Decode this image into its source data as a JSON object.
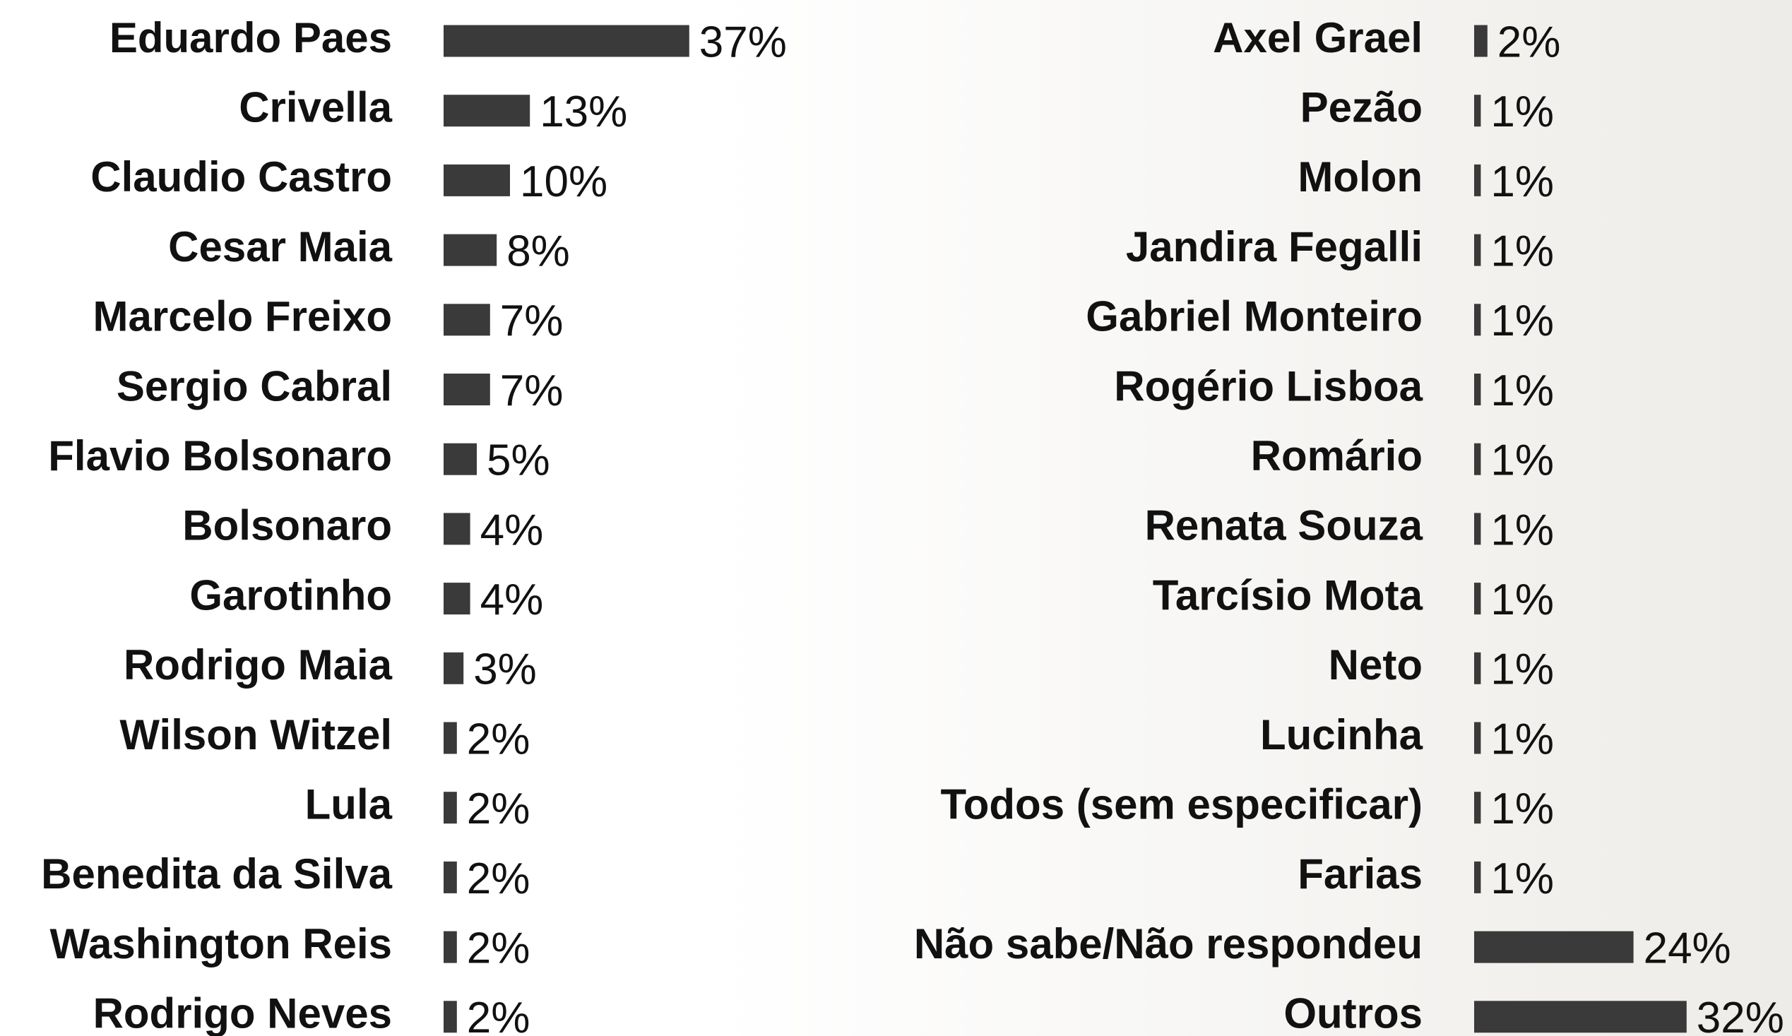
{
  "chart_data": [
    {
      "type": "bar",
      "orientation": "horizontal",
      "color": "#3a3a3a",
      "categories": [
        "Eduardo Paes",
        "Crivella",
        "Claudio Castro",
        "Cesar Maia",
        "Marcelo Freixo",
        "Sergio Cabral",
        "Flavio Bolsonaro",
        "Bolsonaro",
        "Garotinho",
        "Rodrigo Maia",
        "Wilson Witzel",
        "Lula",
        "Benedita da Silva",
        "Washington Reis",
        "Rodrigo Neves"
      ],
      "values": [
        37,
        13,
        10,
        8,
        7,
        7,
        5,
        4,
        4,
        3,
        2,
        2,
        2,
        2,
        2
      ],
      "value_labels": [
        "37%",
        "13%",
        "10%",
        "8%",
        "7%",
        "7%",
        "5%",
        "4%",
        "4%",
        "3%",
        "2%",
        "2%",
        "2%",
        "2%",
        "2%"
      ]
    },
    {
      "type": "bar",
      "orientation": "horizontal",
      "color": "#3a3a3a",
      "categories": [
        "Axel Grael",
        "Pezão",
        "Molon",
        "Jandira Fegalli",
        "Gabriel Monteiro",
        "Rogério Lisboa",
        "Romário",
        "Renata Souza",
        "Tarcísio Mota",
        "Neto",
        "Lucinha",
        "Todos (sem especificar)",
        "Farias",
        "Não sabe/Não respondeu",
        "Outros"
      ],
      "values": [
        2,
        1,
        1,
        1,
        1,
        1,
        1,
        1,
        1,
        1,
        1,
        1,
        1,
        24,
        32
      ],
      "value_labels": [
        "2%",
        "1%",
        "1%",
        "1%",
        "1%",
        "1%",
        "1%",
        "1%",
        "1%",
        "1%",
        "1%",
        "1%",
        "1%",
        "24%",
        "32%"
      ]
    }
  ]
}
